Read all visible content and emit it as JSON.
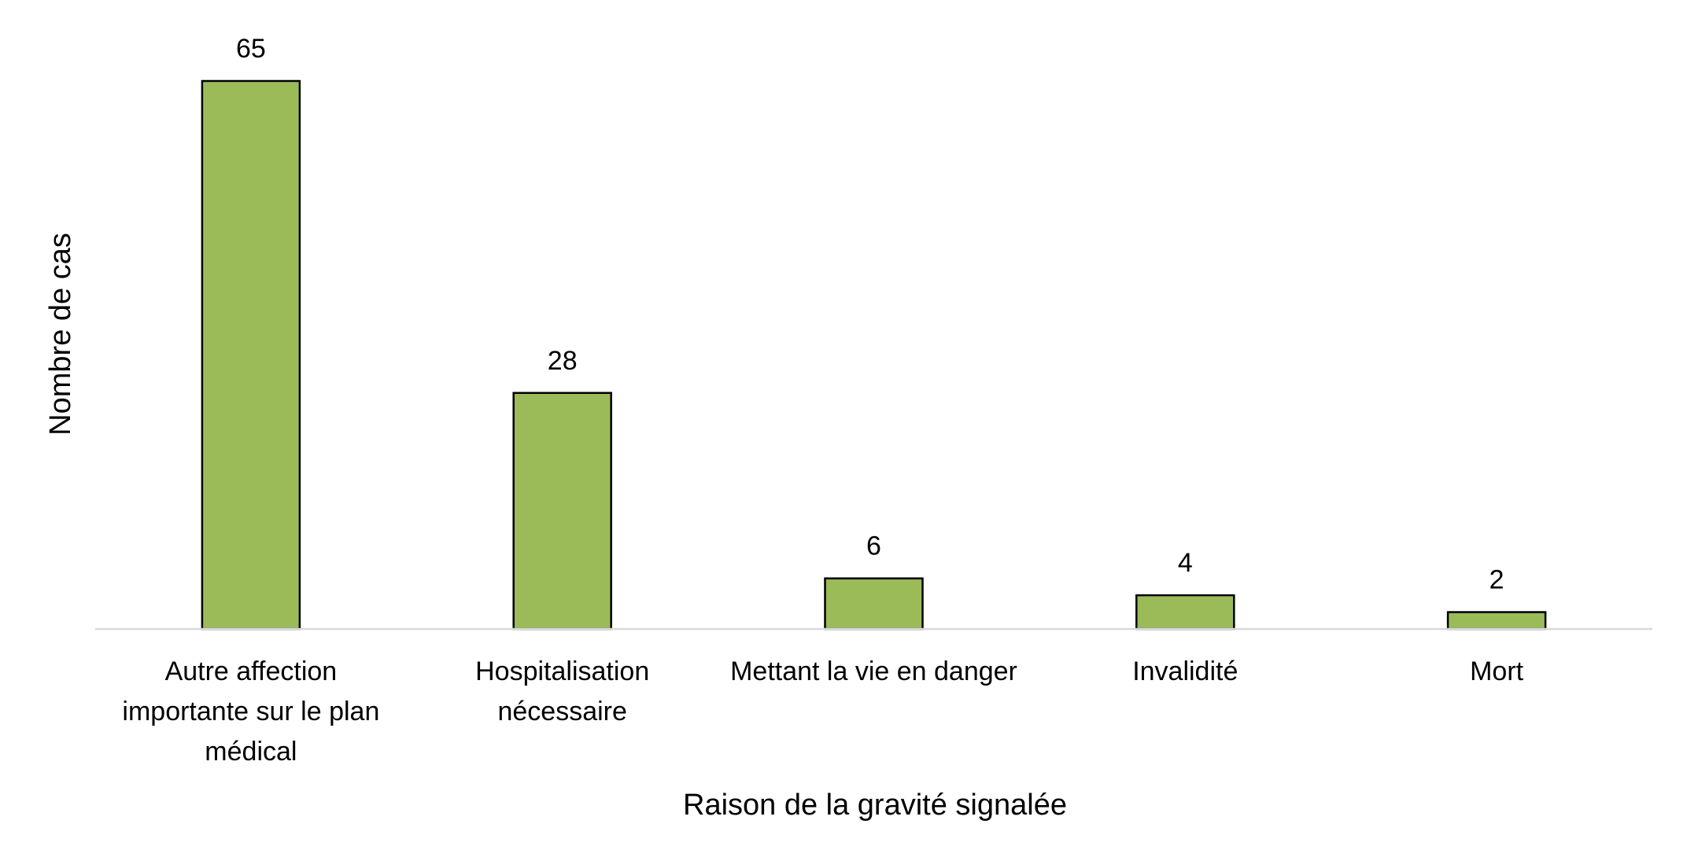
{
  "chart_data": {
    "type": "bar",
    "x_label": "Raison de la gravité signalée",
    "y_label": "Nombre de cas",
    "categories": [
      "Autre affection importante sur le plan médical",
      "Hospitalisation nécessaire",
      "Mettant la vie en danger",
      "Invalidité",
      "Mort"
    ],
    "values": [
      65,
      28,
      6,
      4,
      2
    ],
    "color": "#9bbb59",
    "ylim": [
      0,
      65
    ]
  }
}
